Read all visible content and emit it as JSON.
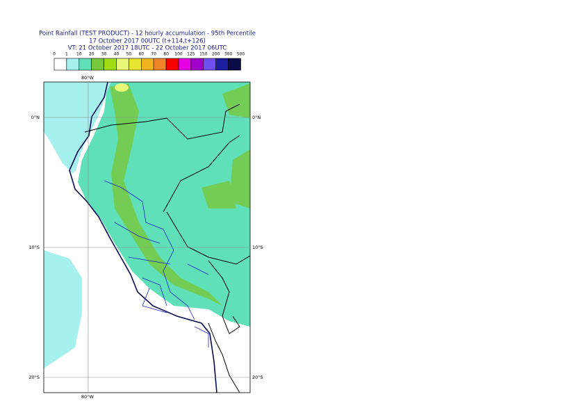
{
  "header": {
    "title": "Point Rainfall (TEST PRODUCT) - 12 hourly accumulation - 95th Percentile",
    "run": "17 October 2017 00UTC (t+114,t+126)",
    "valid": "VT: 21 October 2017 18UTC - 22 October 2017 06UTC"
  },
  "legend": {
    "labels": [
      "0",
      "1",
      "10",
      "20",
      "30",
      "40",
      "50",
      "60",
      "70",
      "80",
      "100",
      "125",
      "150",
      "200",
      "300",
      "500"
    ],
    "colors": [
      "#ffffff",
      "#a6f0ee",
      "#5fe0b8",
      "#78c83c",
      "#a0dc14",
      "#e8f878",
      "#e6e632",
      "#f0b41e",
      "#f08228",
      "#fa0000",
      "#e600e6",
      "#a000c8",
      "#6e50f0",
      "#1e1ea0",
      "#0a0a46"
    ]
  },
  "map": {
    "lon_label": "80°W",
    "lat_labels": [
      "0°N",
      "10°S",
      "20°S"
    ]
  }
}
